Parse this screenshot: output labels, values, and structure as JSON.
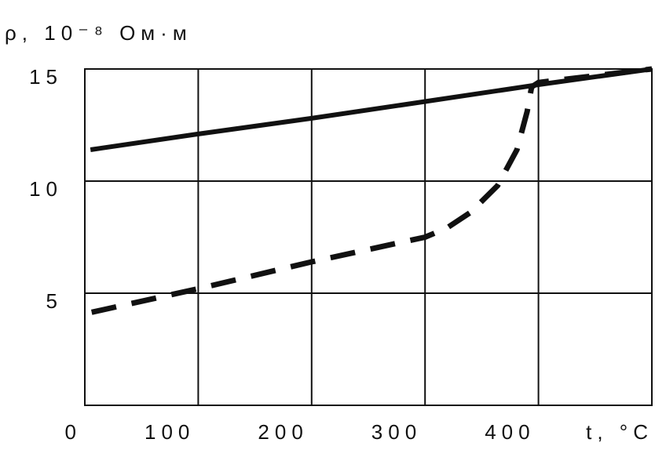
{
  "chart_data": {
    "type": "line",
    "ylabel": "ρ, 10⁻⁸ Ом·м",
    "xlabel": "t, °C",
    "xlim": [
      0,
      500
    ],
    "xticks": [
      0,
      100,
      200,
      300,
      400
    ],
    "ylim": [
      0,
      15
    ],
    "yticks": [
      5,
      10,
      15
    ],
    "grid": true,
    "series": [
      {
        "color": "#111111",
        "line_style": "solid",
        "x": [
          5,
          100,
          200,
          300,
          400,
          500
        ],
        "values": [
          11.4,
          12.1,
          12.8,
          13.55,
          14.3,
          15.0
        ]
      },
      {
        "color": "#111111",
        "line_style": "dashed",
        "x": [
          6,
          100,
          200,
          300,
          319,
          340,
          364,
          381,
          390,
          394,
          400,
          500
        ],
        "values": [
          4.15,
          5.2,
          6.4,
          7.5,
          7.9,
          8.6,
          9.8,
          11.4,
          13.1,
          14.2,
          14.4,
          15.0
        ]
      }
    ]
  }
}
